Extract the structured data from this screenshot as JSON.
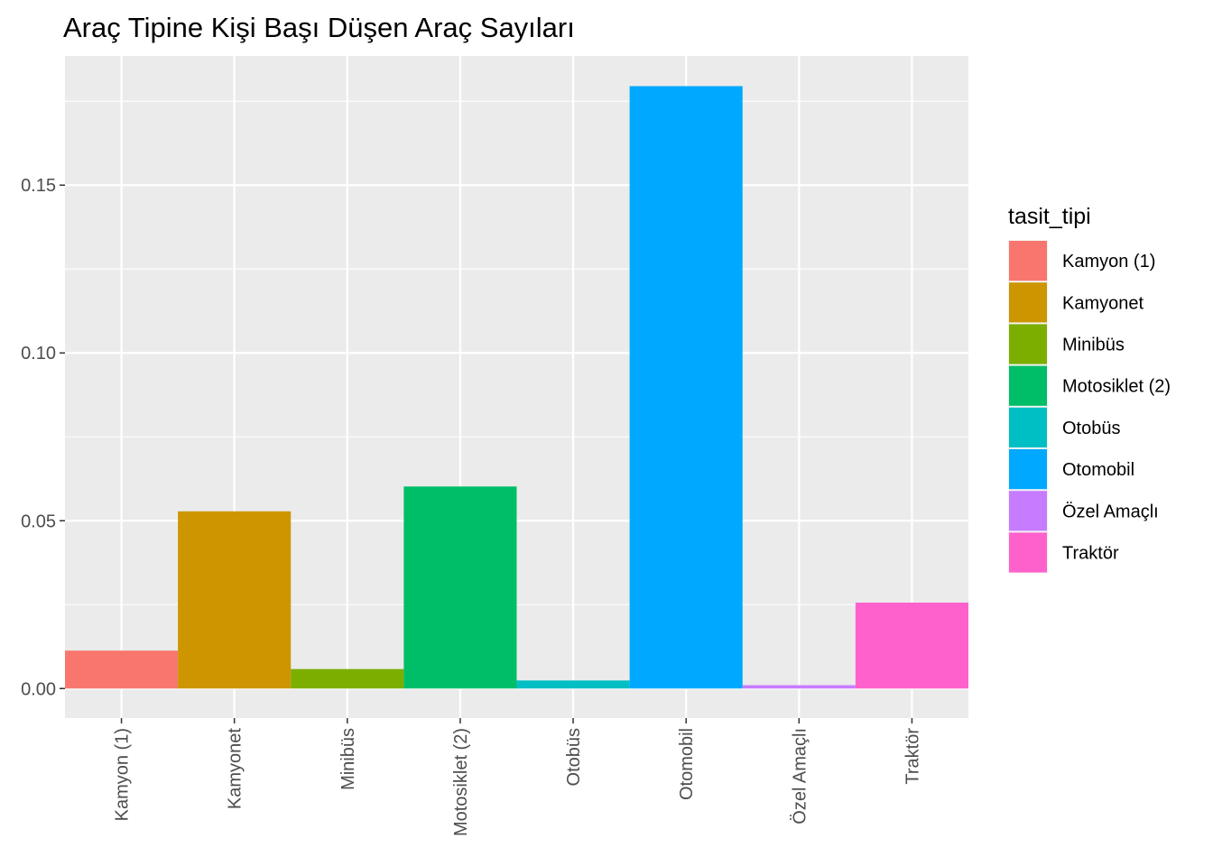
{
  "chart_data": {
    "type": "bar",
    "title": "Araç Tipine Kişi Başı Düşen Araç Sayıları",
    "xlabel": "",
    "ylabel": "",
    "categories": [
      "Kamyon (1)",
      "Kamyonet",
      "Minibüs",
      "Motosiklet (2)",
      "Otobüs",
      "Otomobil",
      "Özel Amaçlı",
      "Traktör"
    ],
    "values": [
      0.0113,
      0.0528,
      0.0058,
      0.0602,
      0.0024,
      0.1795,
      0.001,
      0.0256
    ],
    "colors": [
      "#F8766D",
      "#CD9600",
      "#7CAE00",
      "#00BE67",
      "#00BFC4",
      "#00A9FF",
      "#C77CFF",
      "#FF61CC"
    ],
    "ylim": [
      -0.0088,
      0.1885
    ],
    "yticks": [
      0.0,
      0.05,
      0.1,
      0.15
    ],
    "ytick_labels": [
      "0.00",
      "0.05",
      "0.10",
      "0.15"
    ],
    "grid": true,
    "panel_background": "#EBEBEB",
    "legend": {
      "title": "tasit_tipi",
      "position": "right"
    }
  }
}
